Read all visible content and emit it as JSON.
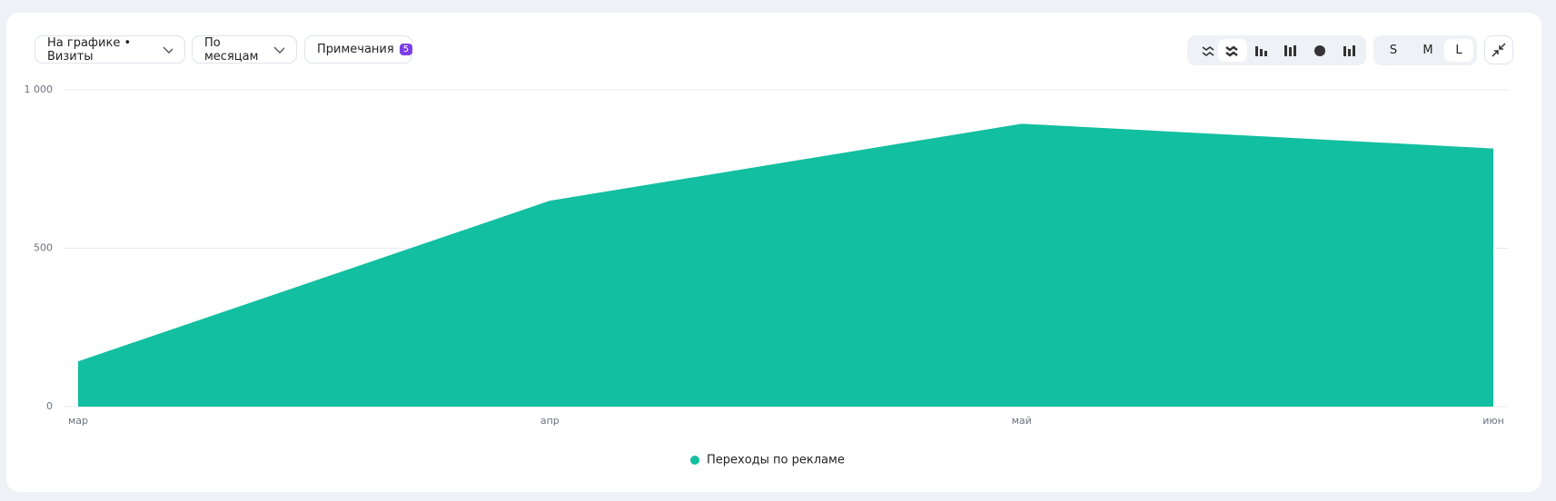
{
  "toolbar": {
    "metric_select": "На графике • Визиты",
    "period_select": "По месяцам",
    "notes_button": "Примечания",
    "notes_count": "5",
    "sizes": [
      "S",
      "M",
      "L"
    ]
  },
  "chart_data": {
    "type": "area",
    "categories": [
      "мар",
      "апр",
      "май",
      "июн"
    ],
    "series": [
      {
        "name": "Переходы по рекламе",
        "color": "#12bfa0",
        "values": [
          143,
          650,
          893,
          815
        ]
      }
    ],
    "ylim": [
      0,
      1000
    ],
    "yticks": [
      0,
      500,
      {
        "value": 1000,
        "label": "1 000"
      }
    ],
    "grid": true,
    "legend": "bottom"
  }
}
